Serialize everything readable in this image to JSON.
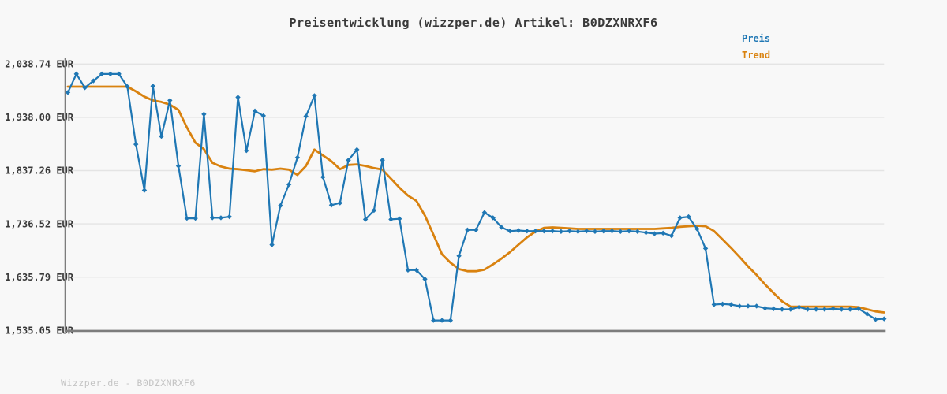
{
  "title": "Preisentwicklung (wizzper.de) Artikel: B0DZXNRXF6",
  "watermark": "Wizzper.de - B0DZXNRXF6",
  "legend": {
    "items": [
      {
        "label": "Preis",
        "color": "#1f77b4"
      },
      {
        "label": "Trend",
        "color": "#d9820f"
      }
    ]
  },
  "colors": {
    "background": "#f8f8f8",
    "gridline": "#e4e4e4",
    "axis": "#7d7d7d",
    "price_line": "#1f77b4",
    "trend_line": "#d9820f",
    "title_text": "#3a3a3a",
    "tick_text": "#3a3a3a",
    "watermark_text": "#c4c4c4"
  },
  "chart_data": {
    "type": "line",
    "title": "Preisentwicklung (wizzper.de) Artikel: B0DZXNRXF6",
    "xlabel": "",
    "ylabel": "",
    "x_axis_labels_visible": false,
    "grid": "horizontal-only",
    "legend_position": "top-right",
    "ylim": [
      1535.05,
      2038.74
    ],
    "currency": "EUR",
    "yticks": [
      {
        "value": 2038.74,
        "label": "2,038.74 EUR"
      },
      {
        "value": 1938.0,
        "label": "1,938.00 EUR"
      },
      {
        "value": 1837.26,
        "label": "1,837.26 EUR"
      },
      {
        "value": 1736.52,
        "label": "1,736.52 EUR"
      },
      {
        "value": 1635.79,
        "label": "1,635.79 EUR"
      },
      {
        "value": 1535.05,
        "label": "1,535.05 EUR"
      }
    ],
    "series": [
      {
        "name": "Preis",
        "color": "#1f77b4",
        "marker": "diamond",
        "line_width": 2.2,
        "values": [
          1985,
          2020,
          1994,
          2007,
          2020,
          2020,
          2020,
          1996,
          1887,
          1800,
          1997,
          1902,
          1970,
          1846,
          1747,
          1747,
          1944,
          1748,
          1748,
          1750,
          1976,
          1875,
          1950,
          1941,
          1697,
          1771,
          1811,
          1862,
          1940,
          1979,
          1825,
          1772,
          1776,
          1857,
          1877,
          1745,
          1762,
          1857,
          1745,
          1746,
          1649,
          1649,
          1632,
          1554,
          1554,
          1554,
          1676,
          1725,
          1725,
          1758,
          1748,
          1730,
          1723,
          1724,
          1723,
          1723,
          1723,
          1723,
          1722,
          1723,
          1722,
          1723,
          1722,
          1723,
          1723,
          1722,
          1723,
          1722,
          1720,
          1718,
          1719,
          1714,
          1748,
          1750,
          1727,
          1690,
          1584,
          1585,
          1584,
          1581,
          1581,
          1581,
          1577,
          1576,
          1575,
          1575,
          1579,
          1575,
          1575,
          1575,
          1576,
          1575,
          1575,
          1576,
          1566,
          1556,
          1557
        ]
      },
      {
        "name": "Trend",
        "color": "#d9820f",
        "marker": "none",
        "line_width": 2.8,
        "values": [
          1996,
          1996,
          1996,
          1996,
          1996,
          1996,
          1996,
          1996,
          1987,
          1977,
          1970,
          1967,
          1962,
          1952,
          1919,
          1890,
          1878,
          1852,
          1845,
          1841,
          1840,
          1838,
          1836,
          1840,
          1839,
          1841,
          1839,
          1829,
          1846,
          1877,
          1866,
          1855,
          1840,
          1848,
          1849,
          1846,
          1842,
          1839,
          1822,
          1805,
          1790,
          1780,
          1752,
          1716,
          1679,
          1663,
          1651,
          1647,
          1647,
          1650,
          1660,
          1671,
          1683,
          1697,
          1711,
          1722,
          1729,
          1730,
          1729,
          1728,
          1727,
          1727,
          1727,
          1727,
          1727,
          1727,
          1727,
          1727,
          1727,
          1727,
          1728,
          1729,
          1731,
          1732,
          1733,
          1732,
          1723,
          1707,
          1691,
          1674,
          1656,
          1640,
          1622,
          1606,
          1590,
          1580,
          1580,
          1580,
          1580,
          1580,
          1580,
          1580,
          1580,
          1579,
          1575,
          1571,
          1569
        ]
      }
    ]
  }
}
